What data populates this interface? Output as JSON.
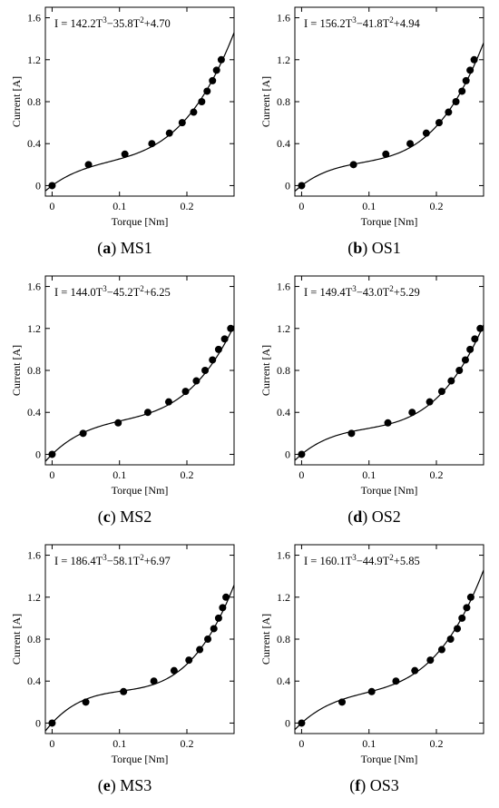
{
  "chart_data": [
    {
      "id": "a",
      "type": "scatter",
      "caption_letter": "a",
      "caption_text": "MS1",
      "xlabel": "Torque [Nm]",
      "ylabel": "Current [A]",
      "xlim": [
        -0.01,
        0.27
      ],
      "ylim": [
        -0.1,
        1.7
      ],
      "xticks": [
        "0",
        "0.1",
        "0.2"
      ],
      "yticks": [
        "0",
        "0.4",
        "0.8",
        "1.2",
        "1.6"
      ],
      "equation": {
        "a": "142.2",
        "b": "35.8",
        "c": "4.70"
      },
      "fit": {
        "a": 142.2,
        "b": -35.8,
        "c": 4.7,
        "d": 0
      },
      "points": [
        [
          0.0,
          0.0
        ],
        [
          0.054,
          0.2
        ],
        [
          0.108,
          0.3
        ],
        [
          0.148,
          0.4
        ],
        [
          0.174,
          0.5
        ],
        [
          0.193,
          0.6
        ],
        [
          0.21,
          0.7
        ],
        [
          0.222,
          0.8
        ],
        [
          0.23,
          0.9
        ],
        [
          0.238,
          1.0
        ],
        [
          0.244,
          1.1
        ],
        [
          0.251,
          1.2
        ]
      ]
    },
    {
      "id": "b",
      "type": "scatter",
      "caption_letter": "b",
      "caption_text": "OS1",
      "xlabel": "Torque [Nm]",
      "ylabel": "Current [A]",
      "xlim": [
        -0.01,
        0.27
      ],
      "ylim": [
        -0.1,
        1.7
      ],
      "xticks": [
        "0",
        "0.1",
        "0.2"
      ],
      "yticks": [
        "0",
        "0.4",
        "0.8",
        "1.2",
        "1.6"
      ],
      "equation": {
        "a": "156.2",
        "b": "41.8",
        "c": "4.94"
      },
      "fit": {
        "a": 156.2,
        "b": -41.8,
        "c": 4.94,
        "d": 0
      },
      "points": [
        [
          0.0,
          0.0
        ],
        [
          0.077,
          0.2
        ],
        [
          0.125,
          0.3
        ],
        [
          0.161,
          0.4
        ],
        [
          0.185,
          0.5
        ],
        [
          0.204,
          0.6
        ],
        [
          0.218,
          0.7
        ],
        [
          0.229,
          0.8
        ],
        [
          0.238,
          0.9
        ],
        [
          0.244,
          1.0
        ],
        [
          0.25,
          1.1
        ],
        [
          0.256,
          1.2
        ]
      ]
    },
    {
      "id": "c",
      "type": "scatter",
      "caption_letter": "c",
      "caption_text": "MS2",
      "xlabel": "Torque [Nm]",
      "ylabel": "Current [A]",
      "xlim": [
        -0.01,
        0.27
      ],
      "ylim": [
        -0.1,
        1.7
      ],
      "xticks": [
        "0",
        "0.1",
        "0.2"
      ],
      "yticks": [
        "0",
        "0.4",
        "0.8",
        "1.2",
        "1.6"
      ],
      "equation": {
        "a": "144.0",
        "b": "45.2",
        "c": "6.25"
      },
      "fit": {
        "a": 144.0,
        "b": -45.2,
        "c": 6.25,
        "d": 0
      },
      "points": [
        [
          0.0,
          0.0
        ],
        [
          0.046,
          0.2
        ],
        [
          0.098,
          0.3
        ],
        [
          0.142,
          0.4
        ],
        [
          0.173,
          0.5
        ],
        [
          0.198,
          0.6
        ],
        [
          0.214,
          0.7
        ],
        [
          0.227,
          0.8
        ],
        [
          0.238,
          0.9
        ],
        [
          0.247,
          1.0
        ],
        [
          0.256,
          1.1
        ],
        [
          0.265,
          1.2
        ]
      ]
    },
    {
      "id": "d",
      "type": "scatter",
      "caption_letter": "d",
      "caption_text": "OS2",
      "xlabel": "Torque [Nm]",
      "ylabel": "Current [A]",
      "xlim": [
        -0.01,
        0.27
      ],
      "ylim": [
        -0.1,
        1.7
      ],
      "xticks": [
        "0",
        "0.1",
        "0.2"
      ],
      "yticks": [
        "0",
        "0.4",
        "0.8",
        "1.2",
        "1.6"
      ],
      "equation": {
        "a": "149.4",
        "b": "43.0",
        "c": "5.29"
      },
      "fit": {
        "a": 149.4,
        "b": -43.0,
        "c": 5.29,
        "d": 0
      },
      "points": [
        [
          0.0,
          0.0
        ],
        [
          0.074,
          0.2
        ],
        [
          0.128,
          0.3
        ],
        [
          0.164,
          0.4
        ],
        [
          0.19,
          0.5
        ],
        [
          0.208,
          0.6
        ],
        [
          0.222,
          0.7
        ],
        [
          0.234,
          0.8
        ],
        [
          0.243,
          0.9
        ],
        [
          0.25,
          1.0
        ],
        [
          0.257,
          1.1
        ],
        [
          0.265,
          1.2
        ]
      ]
    },
    {
      "id": "e",
      "type": "scatter",
      "caption_letter": "e",
      "caption_text": "MS3",
      "xlabel": "Torque [Nm]",
      "ylabel": "Current [A]",
      "xlim": [
        -0.01,
        0.27
      ],
      "ylim": [
        -0.1,
        1.7
      ],
      "xticks": [
        "0",
        "0.1",
        "0.2"
      ],
      "yticks": [
        "0",
        "0.4",
        "0.8",
        "1.2",
        "1.6"
      ],
      "equation": {
        "a": "186.4",
        "b": "58.1",
        "c": "6.97"
      },
      "fit": {
        "a": 186.4,
        "b": -58.1,
        "c": 6.97,
        "d": 0
      },
      "points": [
        [
          0.0,
          0.0
        ],
        [
          0.05,
          0.2
        ],
        [
          0.106,
          0.3
        ],
        [
          0.151,
          0.4
        ],
        [
          0.181,
          0.5
        ],
        [
          0.203,
          0.6
        ],
        [
          0.219,
          0.7
        ],
        [
          0.231,
          0.8
        ],
        [
          0.24,
          0.9
        ],
        [
          0.247,
          1.0
        ],
        [
          0.253,
          1.1
        ],
        [
          0.258,
          1.2
        ]
      ]
    },
    {
      "id": "f",
      "type": "scatter",
      "caption_letter": "f",
      "caption_text": "OS3",
      "xlabel": "Torque [Nm]",
      "ylabel": "Current [A]",
      "xlim": [
        -0.01,
        0.27
      ],
      "ylim": [
        -0.1,
        1.7
      ],
      "xticks": [
        "0",
        "0.1",
        "0.2"
      ],
      "yticks": [
        "0",
        "0.4",
        "0.8",
        "1.2",
        "1.6"
      ],
      "equation": {
        "a": "160.1",
        "b": "44.9",
        "c": "5.85"
      },
      "fit": {
        "a": 160.1,
        "b": -44.9,
        "c": 5.85,
        "d": 0
      },
      "points": [
        [
          0.0,
          0.0
        ],
        [
          0.06,
          0.2
        ],
        [
          0.104,
          0.3
        ],
        [
          0.14,
          0.4
        ],
        [
          0.168,
          0.5
        ],
        [
          0.191,
          0.6
        ],
        [
          0.208,
          0.7
        ],
        [
          0.221,
          0.8
        ],
        [
          0.231,
          0.9
        ],
        [
          0.238,
          1.0
        ],
        [
          0.245,
          1.1
        ],
        [
          0.251,
          1.2
        ]
      ]
    }
  ]
}
